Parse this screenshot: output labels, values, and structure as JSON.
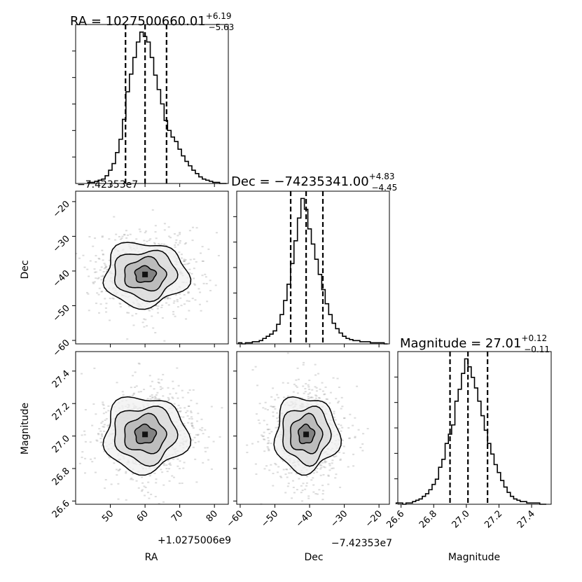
{
  "chart_data": {
    "type": "corner",
    "parameters": [
      "RA",
      "Dec",
      "Magnitude"
    ],
    "titles": [
      {
        "prefix": "RA = 1027500660.01",
        "upper": "+6.19",
        "lower": "−5.63"
      },
      {
        "prefix": "Dec = −74235341.00",
        "upper": "+4.83",
        "lower": "−4.45"
      },
      {
        "prefix": "Magnitude = 27.01",
        "upper": "+0.12",
        "lower": "−0.11"
      }
    ],
    "axis_labels": {
      "x": [
        "RA",
        "Dec",
        "Magnitude"
      ],
      "y": [
        "Dec",
        "Magnitude"
      ]
    },
    "offsets": {
      "ra_x": "+1.0275006e9",
      "dec_x": "−7.42353e7",
      "dec_hist_top": "−7.42353e7"
    },
    "ticks": {
      "ra": {
        "values": [
          50,
          60,
          70,
          80
        ],
        "labels": [
          "50",
          "60",
          "70",
          "80"
        ]
      },
      "dec": {
        "values": [
          -60,
          -50,
          -40,
          -30,
          -20
        ],
        "labels": [
          "−60",
          "−50",
          "−40",
          "−30",
          "−20"
        ]
      },
      "mag": {
        "values": [
          26.6,
          26.8,
          27.0,
          27.2,
          27.4
        ],
        "labels": [
          "26.6",
          "26.8",
          "27.0",
          "27.2",
          "27.4"
        ]
      }
    },
    "ranges": {
      "ra": [
        40,
        84
      ],
      "dec": [
        -61,
        -17
      ],
      "mag": [
        26.58,
        27.52
      ]
    },
    "quantiles": {
      "ra": [
        54.38,
        60.01,
        66.2
      ],
      "dec": [
        -45.45,
        -41.0,
        -36.17
      ],
      "mag": [
        26.9,
        27.01,
        27.13
      ]
    },
    "histograms": {
      "ra": {
        "x": [
          44,
          45,
          46,
          47,
          48,
          49,
          50,
          51,
          52,
          53,
          54,
          55,
          56,
          57,
          58,
          59,
          60,
          61,
          62,
          63,
          64,
          65,
          66,
          67,
          68,
          69,
          70,
          71,
          72,
          73,
          74,
          75,
          76,
          77,
          78,
          79,
          80,
          81,
          82,
          83
        ],
        "y": [
          1,
          1,
          2,
          3,
          4,
          7,
          12,
          18,
          28,
          40,
          58,
          83,
          99,
          114,
          128,
          137,
          133,
          128,
          114,
          98,
          85,
          72,
          57,
          48,
          42,
          38,
          31,
          25,
          20,
          16,
          12,
          9,
          6,
          4,
          3,
          2,
          1,
          1,
          0,
          0
        ]
      },
      "dec": {
        "x": [
          -60,
          -59,
          -58,
          -57,
          -56,
          -55,
          -54,
          -53,
          -52,
          -51,
          -50,
          -49,
          -48,
          -47,
          -46,
          -45,
          -44,
          -43,
          -42,
          -41,
          -40,
          -39,
          -38,
          -37,
          -36,
          -35,
          -34,
          -33,
          -32,
          -31,
          -30,
          -29,
          -28,
          -27,
          -26,
          -25,
          -24,
          -23,
          -22,
          -21,
          -20,
          -19,
          -18
        ],
        "y": [
          1,
          0,
          1,
          1,
          2,
          2,
          3,
          5,
          7,
          9,
          12,
          18,
          27,
          40,
          55,
          74,
          95,
          116,
          134,
          124,
          106,
          92,
          78,
          64,
          50,
          37,
          27,
          19,
          14,
          10,
          7,
          5,
          4,
          3,
          3,
          2,
          2,
          2,
          1,
          1,
          1,
          1,
          0
        ]
      },
      "mag": {
        "x": [
          26.58,
          26.6,
          26.62,
          26.64,
          26.66,
          26.68,
          26.7,
          26.72,
          26.74,
          26.76,
          26.78,
          26.8,
          26.82,
          26.84,
          26.86,
          26.88,
          26.9,
          26.92,
          26.94,
          26.96,
          26.98,
          27.0,
          27.02,
          27.04,
          27.06,
          27.08,
          27.1,
          27.12,
          27.14,
          27.16,
          27.18,
          27.2,
          27.22,
          27.24,
          27.26,
          27.28,
          27.3,
          27.32,
          27.34,
          27.36,
          27.38,
          27.4,
          27.42,
          27.44,
          27.46,
          27.48
        ],
        "y": [
          1,
          1,
          0,
          1,
          1,
          2,
          3,
          4,
          6,
          8,
          11,
          15,
          19,
          28,
          34,
          46,
          53,
          60,
          78,
          87,
          99,
          110,
          104,
          96,
          88,
          78,
          67,
          56,
          46,
          38,
          30,
          24,
          18,
          13,
          9,
          6,
          4,
          3,
          2,
          2,
          1,
          1,
          1,
          1,
          0,
          0
        ]
      }
    },
    "blobs": {
      "ra_dec": {
        "center": [
          60.0,
          -41.0
        ],
        "spread": [
          6.0,
          4.6
        ]
      },
      "ra_mag": {
        "center": [
          60.0,
          27.01
        ],
        "spread": [
          6.0,
          0.115
        ]
      },
      "dec_mag": {
        "center": [
          -41.0,
          27.01
        ],
        "spread": [
          4.6,
          0.115
        ]
      }
    }
  }
}
